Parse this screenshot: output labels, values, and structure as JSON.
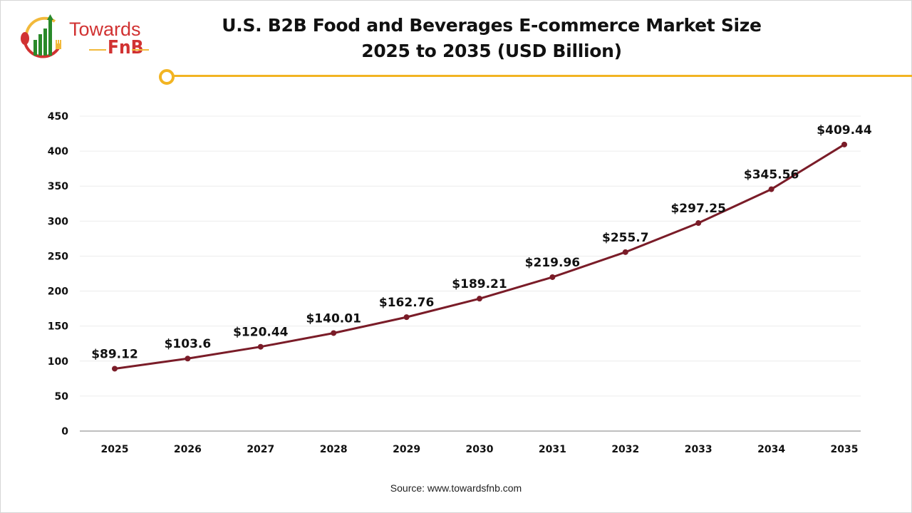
{
  "logo": {
    "line1": "Towards",
    "line2": "FnB"
  },
  "title": {
    "line1": "U.S. B2B Food and Beverages E-commerce Market Size",
    "line2": "2025 to 2035 (USD Billion)"
  },
  "source": "Source: www.towardsfnb.com",
  "colors": {
    "line": "#7a1c28",
    "accent": "#f2b422",
    "brand": "#d13232"
  },
  "chart_data": {
    "type": "line",
    "title": "U.S. B2B Food and Beverages E-commerce Market Size 2025 to 2035 (USD Billion)",
    "categories": [
      "2025",
      "2026",
      "2027",
      "2028",
      "2029",
      "2030",
      "2031",
      "2032",
      "2033",
      "2034",
      "2035"
    ],
    "values": [
      89.12,
      103.6,
      120.44,
      140.01,
      162.76,
      189.21,
      219.96,
      255.7,
      297.25,
      345.56,
      409.44
    ],
    "data_labels": [
      "$89.12",
      "$103.6",
      "$120.44",
      "$140.01",
      "$162.76",
      "$189.21",
      "$219.96",
      "$255.7",
      "$297.25",
      "$345.56",
      "$409.44"
    ],
    "yticks": [
      "0",
      "50",
      "100",
      "150",
      "200",
      "250",
      "300",
      "350",
      "400",
      "450"
    ],
    "ylim": [
      0,
      450
    ],
    "grid": true,
    "legend": "none",
    "xlabel": "",
    "ylabel": ""
  }
}
